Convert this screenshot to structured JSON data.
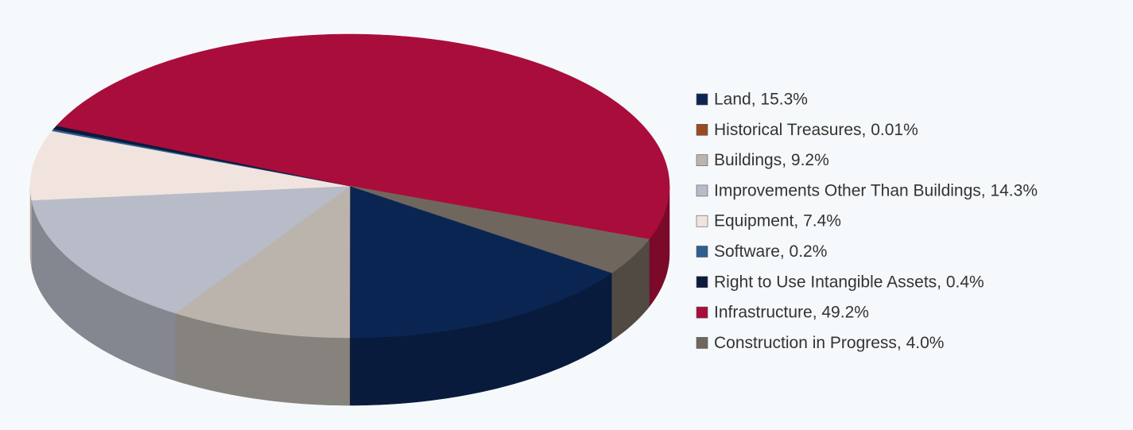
{
  "chart_data": {
    "type": "pie3d",
    "categories": [
      "Land, 15.3%",
      "Historical Treasures, 0.01%",
      "Buildings, 9.2%",
      "Improvements Other Than Buildings, 14.3%",
      "Equipment, 7.4%",
      "Software, 0.2%",
      "Right to Use Intangible Assets, 0.4%",
      "Infrastructure, 49.2%",
      "Construction in Progress, 4.0%"
    ],
    "values": [
      15.3,
      0.01,
      9.2,
      14.3,
      7.4,
      0.2,
      0.4,
      49.2,
      4.0
    ],
    "colors": [
      "#0b2553",
      "#9a4a22",
      "#bab4ad",
      "#b7bcc8",
      "#f1e4de",
      "#2e5f91",
      "#0c1a3c",
      "#a90d3b",
      "#6f675d"
    ],
    "legend": "right"
  }
}
